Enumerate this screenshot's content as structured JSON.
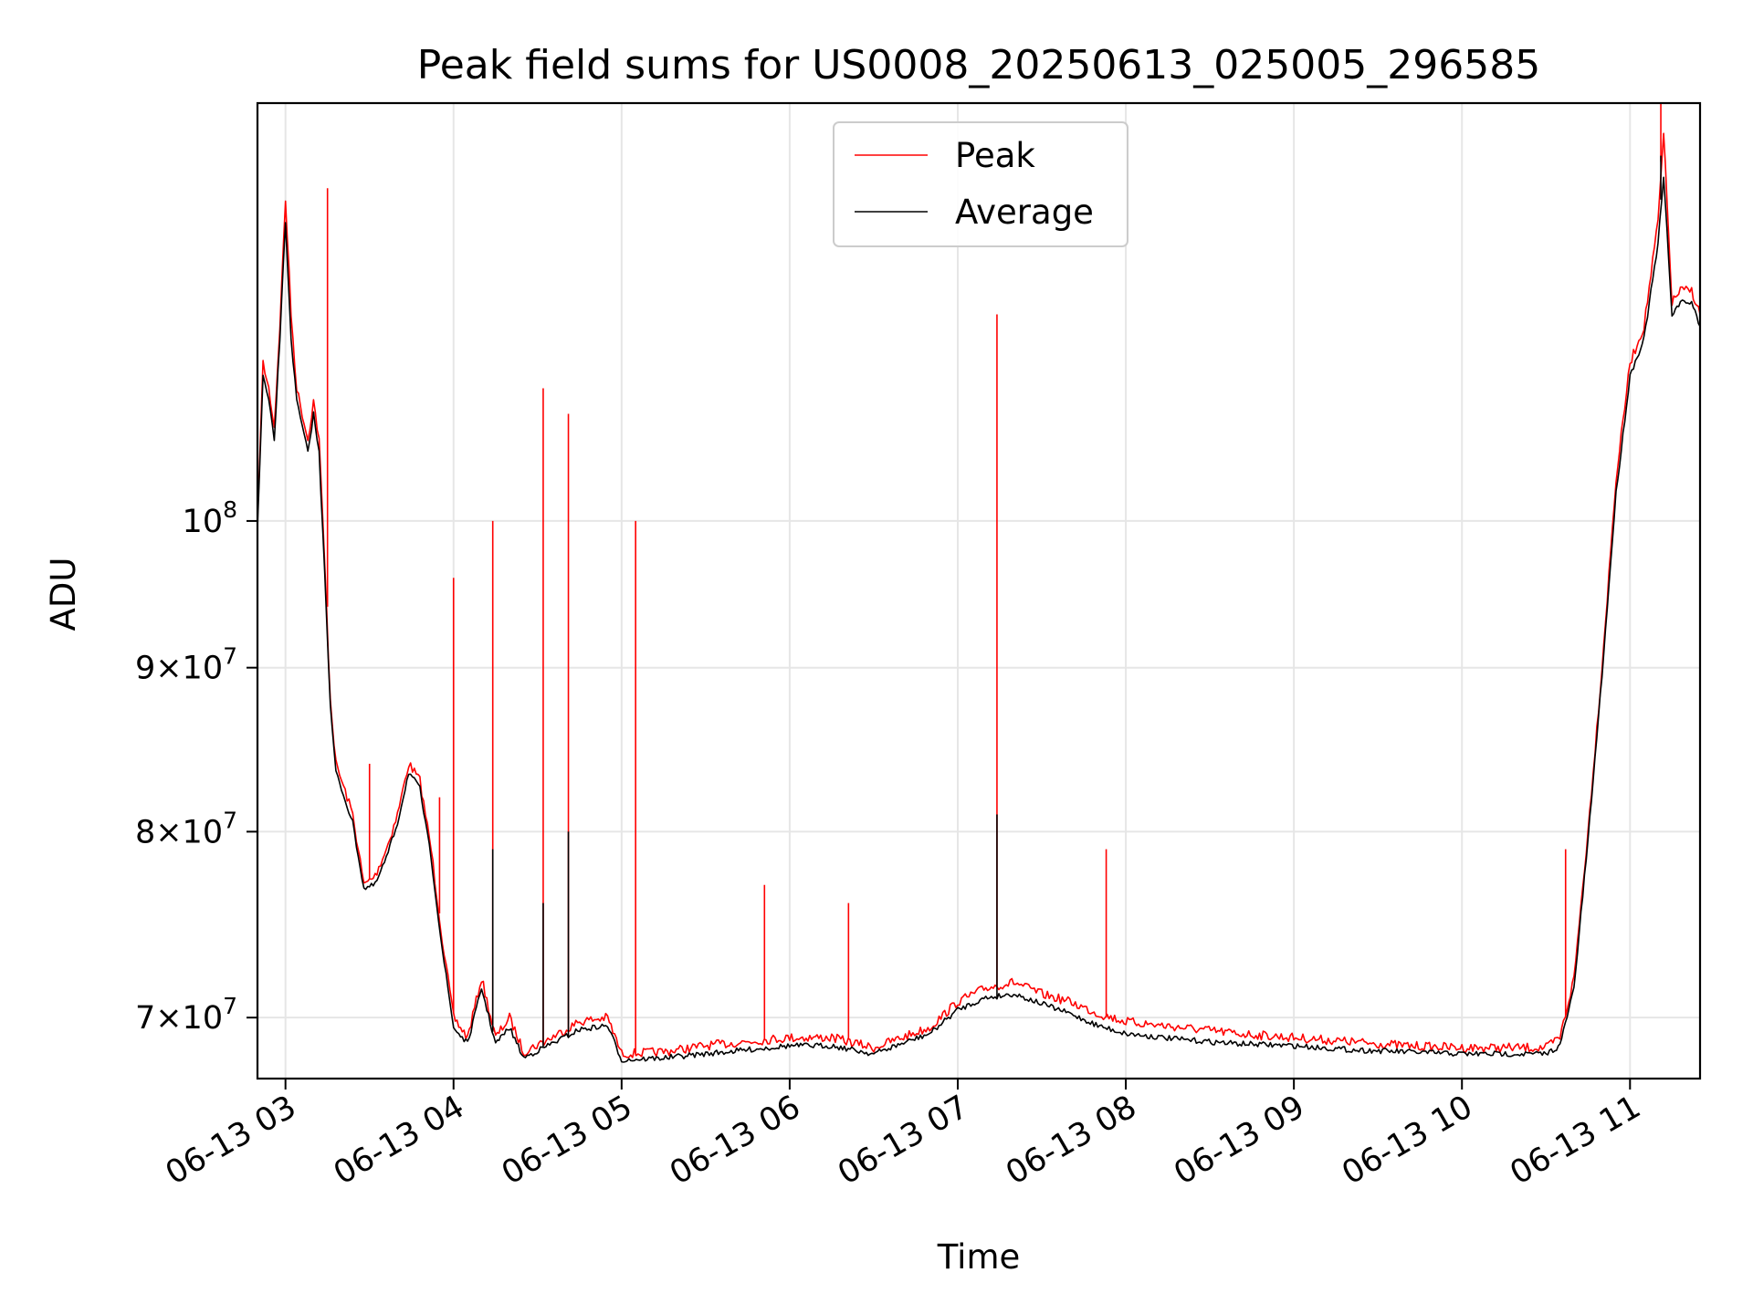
{
  "chart_data": {
    "type": "line",
    "title": "Peak field sums for US0008_20250613_025005_296585",
    "xlabel": "Time",
    "ylabel": "ADU",
    "yscale": "log",
    "xlim": [
      "2025-06-13 02:50",
      "2025-06-13 11:25"
    ],
    "ylim": [
      67000000,
      135000000
    ],
    "x_tick_labels": [
      "06-13 03",
      "06-13 04",
      "06-13 05",
      "06-13 06",
      "06-13 07",
      "06-13 08",
      "06-13 09",
      "06-13 10",
      "06-13 11"
    ],
    "x_tick_times": [
      "2025-06-13 03:00",
      "2025-06-13 04:00",
      "2025-06-13 05:00",
      "2025-06-13 06:00",
      "2025-06-13 07:00",
      "2025-06-13 08:00",
      "2025-06-13 09:00",
      "2025-06-13 10:00",
      "2025-06-13 11:00"
    ],
    "y_ticks": [
      {
        "value": 70000000,
        "mantissa": "7",
        "times": "×",
        "base": "10",
        "exp": "7"
      },
      {
        "value": 80000000,
        "mantissa": "8",
        "times": "×",
        "base": "10",
        "exp": "7"
      },
      {
        "value": 90000000,
        "mantissa": "9",
        "times": "×",
        "base": "10",
        "exp": "7"
      },
      {
        "value": 100000000,
        "mantissa": "",
        "times": "",
        "base": "10",
        "exp": "8"
      }
    ],
    "grid": true,
    "legend_position": "top-center",
    "series": [
      {
        "name": "Peak",
        "color": "#ff0000",
        "points": [
          [
            "02:50",
            100000000
          ],
          [
            "02:52",
            112000000
          ],
          [
            "02:54",
            110000000
          ],
          [
            "02:56",
            107000000
          ],
          [
            "02:58",
            115000000
          ],
          [
            "03:00",
            126000000
          ],
          [
            "03:02",
            116000000
          ],
          [
            "03:04",
            110000000
          ],
          [
            "03:06",
            108000000
          ],
          [
            "03:08",
            106000000
          ],
          [
            "03:10",
            109000000
          ],
          [
            "03:12",
            106000000
          ],
          [
            "03:14",
            97000000
          ],
          [
            "03:16",
            88000000
          ],
          [
            "03:18",
            84000000
          ],
          [
            "03:20",
            83000000
          ],
          [
            "03:24",
            81000000
          ],
          [
            "03:28",
            77000000
          ],
          [
            "03:32",
            77500000
          ],
          [
            "03:36",
            79000000
          ],
          [
            "03:40",
            81000000
          ],
          [
            "03:44",
            84000000
          ],
          [
            "03:48",
            83000000
          ],
          [
            "03:52",
            79000000
          ],
          [
            "03:56",
            74000000
          ],
          [
            "04:00",
            70000000
          ],
          [
            "04:05",
            69000000
          ],
          [
            "04:10",
            72000000
          ],
          [
            "04:15",
            69000000
          ],
          [
            "04:20",
            70000000
          ],
          [
            "04:25",
            68300000
          ],
          [
            "04:35",
            69000000
          ],
          [
            "04:45",
            69800000
          ],
          [
            "04:55",
            70000000
          ],
          [
            "05:00",
            68200000
          ],
          [
            "05:15",
            68300000
          ],
          [
            "05:30",
            68600000
          ],
          [
            "05:45",
            68800000
          ],
          [
            "06:00",
            69000000
          ],
          [
            "06:15",
            69000000
          ],
          [
            "06:30",
            68500000
          ],
          [
            "06:40",
            69000000
          ],
          [
            "06:50",
            69500000
          ],
          [
            "07:00",
            70800000
          ],
          [
            "07:10",
            71500000
          ],
          [
            "07:20",
            71800000
          ],
          [
            "07:30",
            71200000
          ],
          [
            "07:40",
            70800000
          ],
          [
            "07:50",
            70200000
          ],
          [
            "08:00",
            69800000
          ],
          [
            "08:20",
            69500000
          ],
          [
            "08:40",
            69200000
          ],
          [
            "09:00",
            69000000
          ],
          [
            "09:20",
            68800000
          ],
          [
            "09:40",
            68600000
          ],
          [
            "10:00",
            68500000
          ],
          [
            "10:20",
            68500000
          ],
          [
            "10:30",
            68500000
          ],
          [
            "10:35",
            69000000
          ],
          [
            "10:40",
            72000000
          ],
          [
            "10:45",
            80000000
          ],
          [
            "10:50",
            90000000
          ],
          [
            "10:55",
            103000000
          ],
          [
            "11:00",
            112000000
          ],
          [
            "11:05",
            115000000
          ],
          [
            "11:10",
            124000000
          ],
          [
            "11:12",
            132000000
          ],
          [
            "11:15",
            117000000
          ],
          [
            "11:18",
            118000000
          ],
          [
            "11:22",
            118000000
          ],
          [
            "11:25",
            116000000
          ]
        ],
        "spikes": [
          [
            "03:15",
            127000000
          ],
          [
            "03:30",
            84000000
          ],
          [
            "03:55",
            82000000
          ],
          [
            "04:00",
            96000000
          ],
          [
            "04:14",
            100000000
          ],
          [
            "04:32",
            110000000
          ],
          [
            "04:41",
            108000000
          ],
          [
            "05:05",
            100000000
          ],
          [
            "05:51",
            77000000
          ],
          [
            "06:21",
            76000000
          ],
          [
            "07:14",
            116000000
          ],
          [
            "07:53",
            79000000
          ],
          [
            "10:37",
            79000000
          ],
          [
            "11:11",
            135000000
          ]
        ]
      },
      {
        "name": "Average",
        "color": "#000000",
        "points": [
          [
            "02:50",
            99500000
          ],
          [
            "02:52",
            111000000
          ],
          [
            "02:54",
            109000000
          ],
          [
            "02:56",
            106000000
          ],
          [
            "02:58",
            114000000
          ],
          [
            "03:00",
            124000000
          ],
          [
            "03:02",
            114000000
          ],
          [
            "03:04",
            109000000
          ],
          [
            "03:06",
            107000000
          ],
          [
            "03:08",
            105000000
          ],
          [
            "03:10",
            108000000
          ],
          [
            "03:12",
            105000000
          ],
          [
            "03:14",
            96500000
          ],
          [
            "03:16",
            87500000
          ],
          [
            "03:18",
            83500000
          ],
          [
            "03:20",
            82500000
          ],
          [
            "03:24",
            80500000
          ],
          [
            "03:28",
            76800000
          ],
          [
            "03:32",
            77000000
          ],
          [
            "03:36",
            78500000
          ],
          [
            "03:40",
            80500000
          ],
          [
            "03:44",
            83500000
          ],
          [
            "03:48",
            82500000
          ],
          [
            "03:52",
            78500000
          ],
          [
            "03:56",
            73500000
          ],
          [
            "04:00",
            69500000
          ],
          [
            "04:05",
            68700000
          ],
          [
            "04:10",
            71500000
          ],
          [
            "04:15",
            68700000
          ],
          [
            "04:20",
            69500000
          ],
          [
            "04:25",
            68000000
          ],
          [
            "04:35",
            68700000
          ],
          [
            "04:45",
            69400000
          ],
          [
            "04:55",
            69600000
          ],
          [
            "05:00",
            67900000
          ],
          [
            "05:15",
            68000000
          ],
          [
            "05:30",
            68200000
          ],
          [
            "05:45",
            68400000
          ],
          [
            "06:00",
            68600000
          ],
          [
            "06:15",
            68600000
          ],
          [
            "06:30",
            68200000
          ],
          [
            "06:40",
            68700000
          ],
          [
            "06:50",
            69200000
          ],
          [
            "07:00",
            70400000
          ],
          [
            "07:10",
            71000000
          ],
          [
            "07:20",
            71200000
          ],
          [
            "07:30",
            70700000
          ],
          [
            "07:40",
            70200000
          ],
          [
            "07:50",
            69600000
          ],
          [
            "08:00",
            69200000
          ],
          [
            "08:20",
            68900000
          ],
          [
            "08:40",
            68700000
          ],
          [
            "09:00",
            68600000
          ],
          [
            "09:20",
            68400000
          ],
          [
            "09:40",
            68300000
          ],
          [
            "10:00",
            68200000
          ],
          [
            "10:20",
            68200000
          ],
          [
            "10:30",
            68200000
          ],
          [
            "10:35",
            68600000
          ],
          [
            "10:40",
            71500000
          ],
          [
            "10:45",
            79500000
          ],
          [
            "10:50",
            89500000
          ],
          [
            "10:55",
            102000000
          ],
          [
            "11:00",
            111000000
          ],
          [
            "11:05",
            114000000
          ],
          [
            "11:10",
            122000000
          ],
          [
            "11:12",
            128000000
          ],
          [
            "11:15",
            116000000
          ],
          [
            "11:18",
            117000000
          ],
          [
            "11:22",
            117000000
          ],
          [
            "11:25",
            115000000
          ]
        ],
        "spikes": [
          [
            "04:14",
            79000000
          ],
          [
            "04:32",
            76000000
          ],
          [
            "04:41",
            80000000
          ],
          [
            "07:14",
            81000000
          ],
          [
            "11:11",
            130000000
          ]
        ]
      }
    ]
  }
}
